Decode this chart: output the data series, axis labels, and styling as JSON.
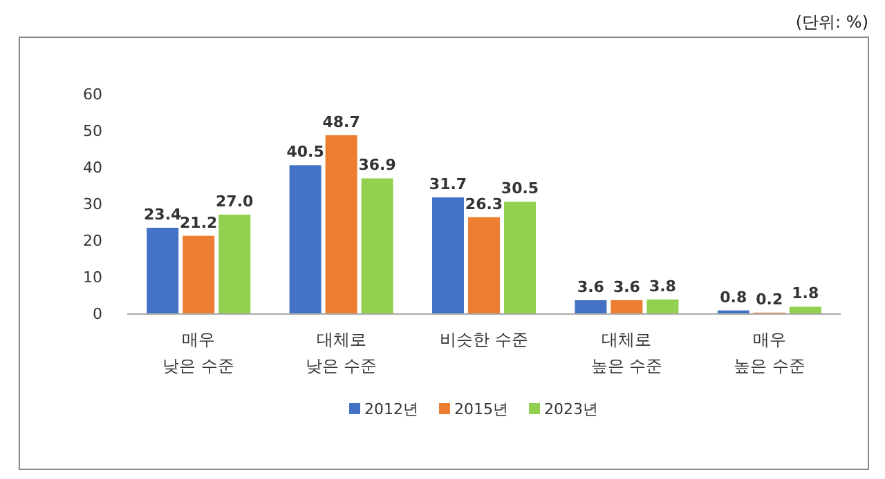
{
  "chart_data": {
    "type": "bar",
    "categories": [
      "매우\n낮은 수준",
      "대체로\n낮은 수준",
      "비슷한 수준",
      "대체로\n높은 수준",
      "매우\n높은 수준"
    ],
    "series": [
      {
        "name": "2012년",
        "color": "#4472c4",
        "values": [
          23.4,
          40.5,
          31.7,
          3.6,
          0.8
        ]
      },
      {
        "name": "2015년",
        "color": "#ed7d31",
        "values": [
          21.2,
          48.7,
          26.3,
          3.6,
          0.2
        ]
      },
      {
        "name": "2023년",
        "color": "#92d050",
        "values": [
          27.0,
          36.9,
          30.5,
          3.8,
          1.8
        ]
      }
    ],
    "value_labels": [
      [
        "23.4",
        "40.5",
        "31.7",
        "3.6",
        "0.8"
      ],
      [
        "21.2",
        "48.7",
        "26.3",
        "3.6",
        "0.2"
      ],
      [
        "27.0",
        "36.9",
        "30.5",
        "3.8",
        "1.8"
      ]
    ],
    "ylim": [
      0,
      60
    ],
    "yticks": [
      0,
      10,
      20,
      30,
      40,
      50,
      60
    ],
    "legend": "bottom",
    "annotations": [
      "(단위: %)"
    ]
  }
}
